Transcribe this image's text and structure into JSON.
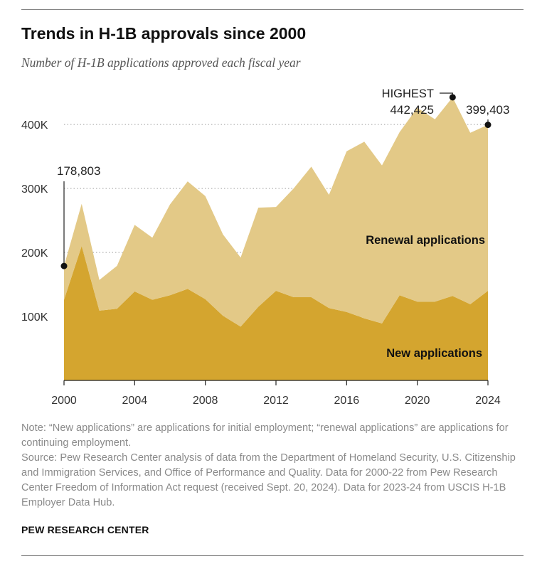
{
  "header": {
    "title": "Trends in H-1B approvals since 2000",
    "subtitle": "Number of H-1B applications approved each fiscal year"
  },
  "chart_data": {
    "type": "area",
    "stacked": true,
    "x": [
      2000,
      2001,
      2002,
      2003,
      2004,
      2005,
      2006,
      2007,
      2008,
      2009,
      2010,
      2011,
      2012,
      2013,
      2014,
      2015,
      2016,
      2017,
      2018,
      2019,
      2020,
      2021,
      2022,
      2023,
      2024
    ],
    "series": [
      {
        "name": "New applications",
        "color": "#d4a52f",
        "values": [
          126000,
          210000,
          109000,
          112000,
          139000,
          126000,
          133000,
          143000,
          127000,
          101000,
          84000,
          115000,
          140000,
          130000,
          130000,
          113000,
          107000,
          97000,
          89000,
          133000,
          123000,
          123000,
          132000,
          119000,
          140000
        ]
      },
      {
        "name": "Renewal applications",
        "color": "#e3c987",
        "values": [
          52803,
          66000,
          48000,
          67000,
          104000,
          97000,
          142000,
          168000,
          161000,
          127000,
          108000,
          155000,
          131000,
          170000,
          204000,
          177000,
          251000,
          276000,
          247000,
          255000,
          303000,
          285000,
          310425,
          268000,
          259403
        ]
      }
    ],
    "ylim": [
      0,
      450000
    ],
    "yticks": [
      100000,
      200000,
      300000,
      400000
    ],
    "ytick_labels": [
      "100K",
      "200K",
      "300K",
      "400K"
    ],
    "xticks": [
      2000,
      2004,
      2008,
      2012,
      2016,
      2020,
      2024
    ],
    "xtick_labels": [
      "2000",
      "2004",
      "2008",
      "2012",
      "2016",
      "2020",
      "2024"
    ],
    "grid": "dotted-horizontal",
    "annotations": [
      {
        "x": 2000,
        "y": 178803,
        "label": "178,803"
      },
      {
        "x": 2022,
        "y": 442425,
        "label_top": "HIGHEST",
        "label": "442,425"
      },
      {
        "x": 2024,
        "y": 399403,
        "label": "399,403"
      }
    ]
  },
  "footer": {
    "note": "Note: “New applications” are applications for initial employment; “renewal applications” are applications for continuing employment.",
    "source": "Source: Pew Research Center analysis of data from the Department of Homeland Security, U.S. Citizenship and Immigration Services, and Office of Performance and Quality. Data for 2000-22 from Pew Research Center Freedom of Information Act request (received Sept. 20, 2024). Data for 2023-24 from USCIS H-1B Employer Data Hub.",
    "brand": "PEW RESEARCH CENTER"
  }
}
